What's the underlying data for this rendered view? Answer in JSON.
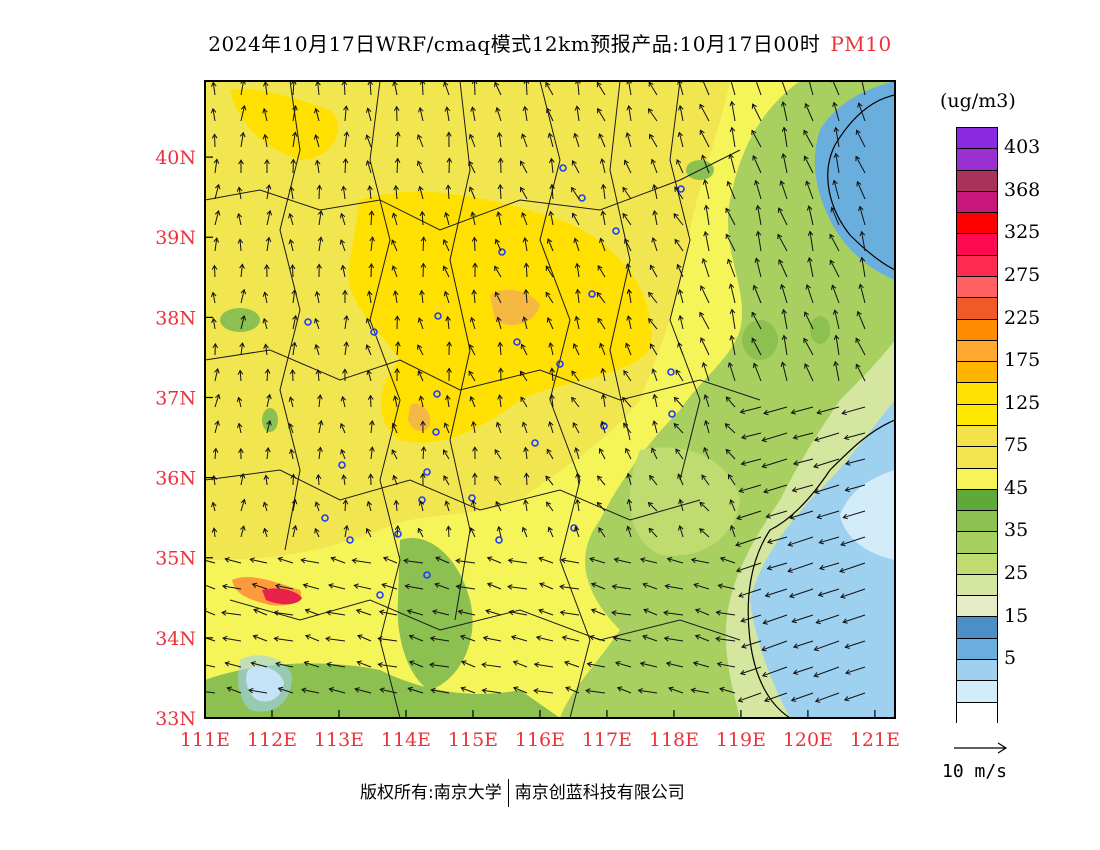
{
  "header": {
    "title": "2024年10月17日WRF/cmaq模式12km预报产品:10月17日00时",
    "pollutant": "PM10"
  },
  "map": {
    "lat_labels": [
      "40N",
      "39N",
      "38N",
      "37N",
      "36N",
      "35N",
      "34N",
      "33N"
    ],
    "lon_labels": [
      "111E",
      "112E",
      "113E",
      "114E",
      "115E",
      "116E",
      "117E",
      "118E",
      "119E",
      "120E",
      "121E"
    ],
    "lon_range": [
      111,
      121.3
    ],
    "lat_range": [
      33,
      40.95
    ]
  },
  "legend": {
    "unit": "(ug/m3)",
    "bands_top_to_bottom": [
      {
        "color": "#8a2be2"
      },
      {
        "color": "#9b30d0"
      },
      {
        "color": "#a8325a"
      },
      {
        "color": "#c8177a"
      },
      {
        "color": "#ff0000"
      },
      {
        "color": "#ff0a50"
      },
      {
        "color": "#ff2a50"
      },
      {
        "color": "#ff6060"
      },
      {
        "color": "#f05a28"
      },
      {
        "color": "#ff8c00"
      },
      {
        "color": "#ffa830"
      },
      {
        "color": "#ffb400"
      },
      {
        "color": "#ffe000"
      },
      {
        "color": "#ffe800"
      },
      {
        "color": "#f5e24a"
      },
      {
        "color": "#f2e650"
      },
      {
        "color": "#f5f55a"
      },
      {
        "color": "#5fa83a"
      },
      {
        "color": "#8cc050"
      },
      {
        "color": "#a8d060"
      },
      {
        "color": "#c0dc70"
      },
      {
        "color": "#d5e6a0"
      },
      {
        "color": "#e6ecc8"
      },
      {
        "color": "#4a8fc8"
      },
      {
        "color": "#6aaede"
      },
      {
        "color": "#9ed0f0"
      },
      {
        "color": "#d2ecfa"
      },
      {
        "color": "#ffffff"
      }
    ],
    "labels": [
      "403",
      "368",
      "325",
      "275",
      "225",
      "175",
      "125",
      "75",
      "45",
      "35",
      "25",
      "15",
      "5"
    ]
  },
  "wind_reference": {
    "label": "10 m/s"
  },
  "footer": {
    "left": "版权所有:南京大学",
    "right": "南京创蓝科技有限公司"
  }
}
